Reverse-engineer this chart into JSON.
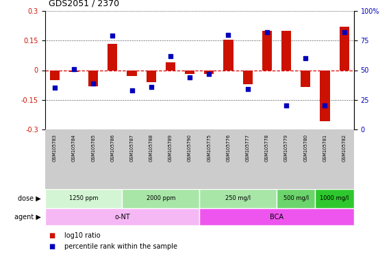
{
  "title": "GDS2051 / 2370",
  "samples": [
    "GSM105783",
    "GSM105784",
    "GSM105785",
    "GSM105786",
    "GSM105787",
    "GSM105788",
    "GSM105789",
    "GSM105790",
    "GSM105775",
    "GSM105776",
    "GSM105777",
    "GSM105778",
    "GSM105779",
    "GSM105780",
    "GSM105781",
    "GSM105782"
  ],
  "log10_ratio": [
    -0.05,
    -0.01,
    -0.08,
    0.135,
    -0.03,
    -0.06,
    0.04,
    -0.02,
    -0.02,
    0.155,
    -0.07,
    0.2,
    0.2,
    -0.085,
    -0.26,
    0.22
  ],
  "percentile_rank": [
    35,
    51,
    39,
    79,
    33,
    36,
    62,
    44,
    47,
    80,
    34,
    82,
    20,
    60,
    20,
    82
  ],
  "dose_groups": [
    {
      "label": "1250 ppm",
      "start": 0,
      "end": 4,
      "color": "#d4f5d4"
    },
    {
      "label": "2000 ppm",
      "start": 4,
      "end": 8,
      "color": "#a8e6a8"
    },
    {
      "label": "250 mg/l",
      "start": 8,
      "end": 12,
      "color": "#a8e6a8"
    },
    {
      "label": "500 mg/l",
      "start": 12,
      "end": 14,
      "color": "#6cd46c"
    },
    {
      "label": "1000 mg/l",
      "start": 14,
      "end": 16,
      "color": "#2ec82e"
    }
  ],
  "agent_groups": [
    {
      "label": "o-NT",
      "start": 0,
      "end": 8,
      "color": "#f5b8f5"
    },
    {
      "label": "BCA",
      "start": 8,
      "end": 16,
      "color": "#ee55ee"
    }
  ],
  "ylim": [
    -0.3,
    0.3
  ],
  "yticks_left": [
    -0.3,
    -0.15,
    0,
    0.15,
    0.3
  ],
  "yticks_right": [
    0,
    25,
    50,
    75,
    100
  ],
  "bar_color": "#cc1100",
  "dot_color": "#0000bb",
  "hline_color": "#dd0000",
  "grid_color": "#333333",
  "bg_color": "#ffffff",
  "label_color_red": "#cc1100",
  "label_color_blue": "#0000bb",
  "sample_bg": "#cccccc"
}
